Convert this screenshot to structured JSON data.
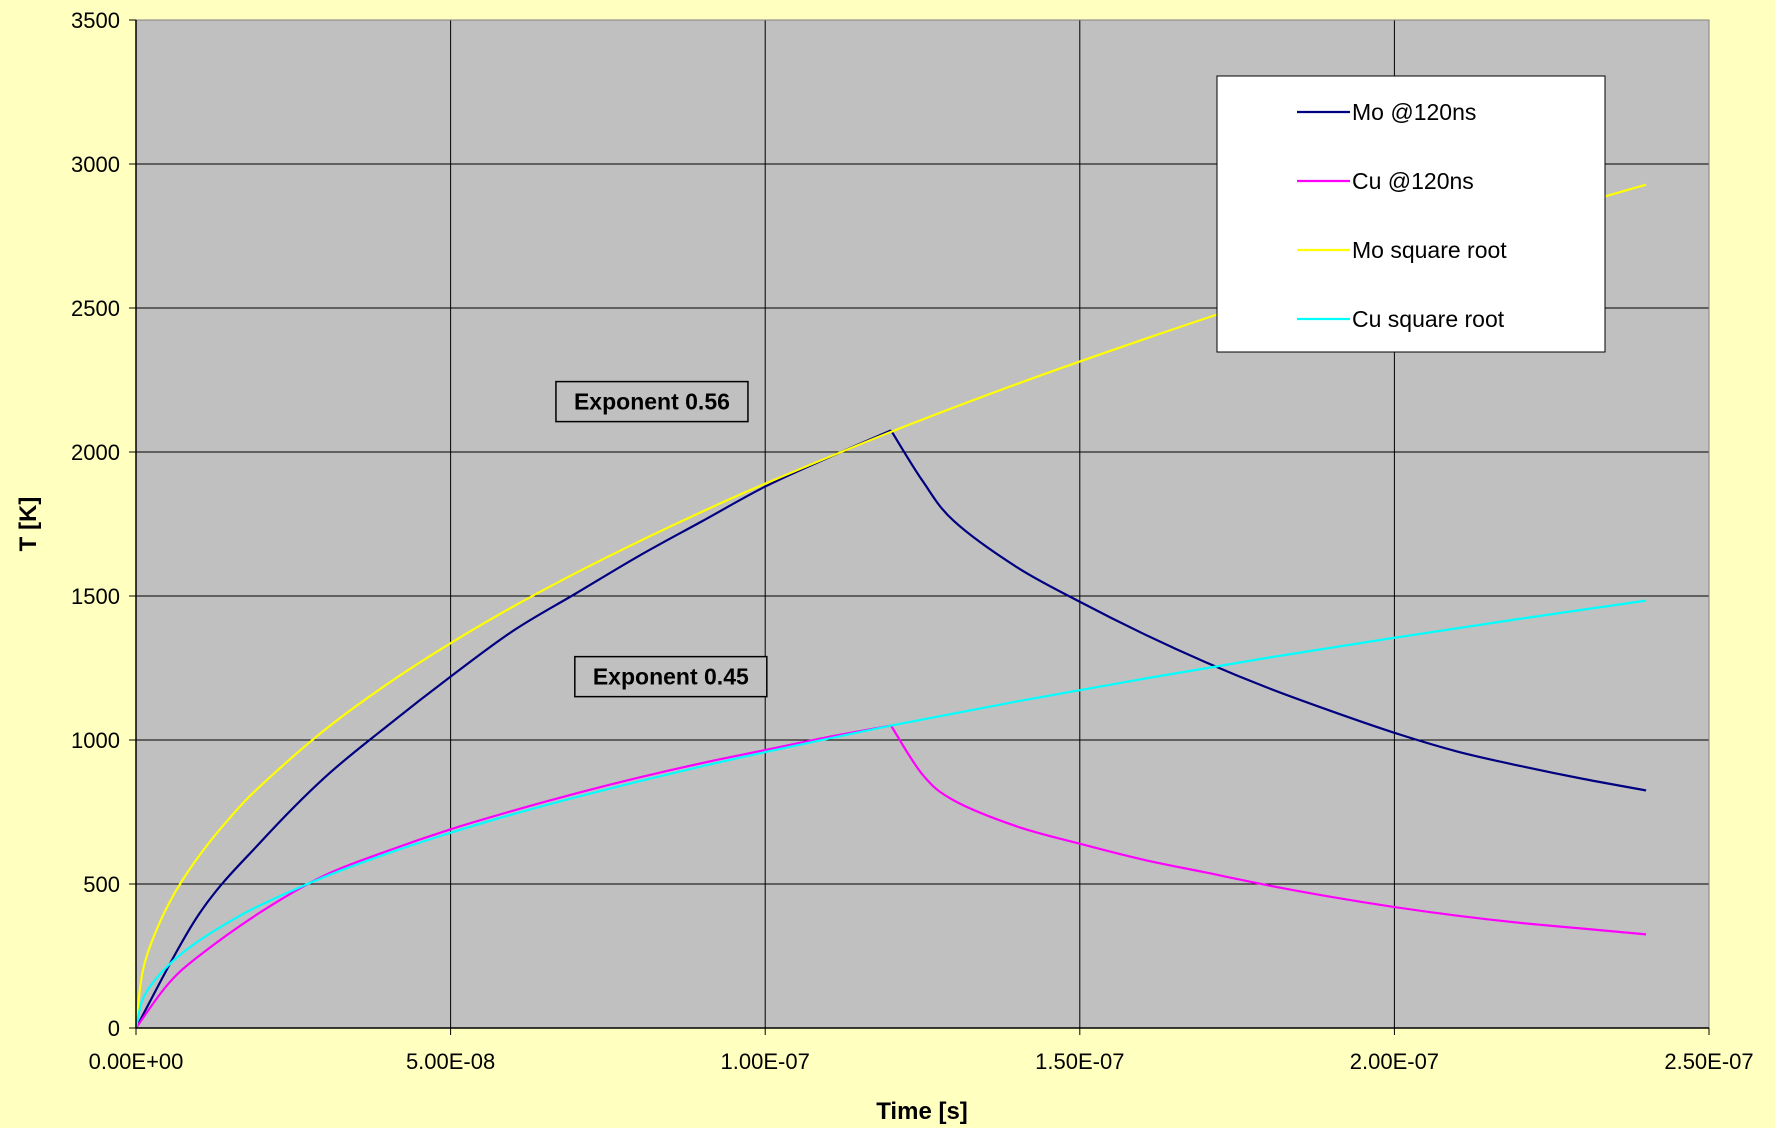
{
  "chart_data": {
    "type": "line",
    "title": "",
    "xlabel": "Time [s]",
    "ylabel": "T [K]",
    "xlim": [
      0,
      2.5e-07
    ],
    "ylim": [
      0,
      3500
    ],
    "x_ticks": [
      0,
      5e-08,
      1e-07,
      1.5e-07,
      2e-07,
      2.5e-07
    ],
    "x_tick_labels": [
      "0.00E+00",
      "5.00E-08",
      "1.00E-07",
      "1.50E-07",
      "2.00E-07",
      "2.50E-07"
    ],
    "y_ticks": [
      0,
      500,
      1000,
      1500,
      2000,
      2500,
      3000,
      3500
    ],
    "y_tick_labels": [
      "0",
      "500",
      "1000",
      "1500",
      "2000",
      "2500",
      "3000",
      "3500"
    ],
    "grid": true,
    "legend_position": "top-right",
    "plot_background": "#C0C0C0",
    "page_background": "#FFFFC0",
    "series": [
      {
        "name": "Mo @120ns",
        "color": "#000080",
        "x": [
          0,
          1e-08,
          2e-08,
          3e-08,
          4e-08,
          5e-08,
          6e-08,
          7e-08,
          8e-08,
          9e-08,
          1e-07,
          1.1e-07,
          1.2e-07,
          1.25e-07,
          1.3e-07,
          1.4e-07,
          1.5e-07,
          1.6e-07,
          1.7e-07,
          1.8e-07,
          1.9e-07,
          2e-07,
          2.1e-07,
          2.2e-07,
          2.3e-07,
          2.4e-07
        ],
        "values": [
          0,
          395,
          650,
          870,
          1050,
          1220,
          1380,
          1510,
          1640,
          1760,
          1880,
          1980,
          2075,
          1900,
          1760,
          1600,
          1480,
          1370,
          1270,
          1180,
          1100,
          1025,
          960,
          910,
          865,
          825
        ]
      },
      {
        "name": "Cu @120ns",
        "color": "#FF00FF",
        "x": [
          0,
          5e-09,
          1e-08,
          2e-08,
          3e-08,
          4e-08,
          5e-08,
          6e-08,
          7e-08,
          8e-08,
          9e-08,
          1e-07,
          1.1e-07,
          1.2e-07,
          1.25e-07,
          1.3e-07,
          1.4e-07,
          1.5e-07,
          1.6e-07,
          1.7e-07,
          1.8e-07,
          1.9e-07,
          2e-07,
          2.1e-07,
          2.2e-07,
          2.3e-07,
          2.4e-07
        ],
        "values": [
          0,
          150,
          250,
          405,
          530,
          615,
          690,
          755,
          815,
          870,
          920,
          965,
          1010,
          1050,
          880,
          790,
          700,
          640,
          585,
          540,
          495,
          455,
          420,
          390,
          365,
          345,
          325
        ]
      },
      {
        "name": "Mo square root",
        "color": "#FFFF00",
        "x": [
          0,
          1e-09,
          3e-09,
          6e-09,
          1e-08,
          1.5e-08,
          2e-08,
          3e-08,
          4e-08,
          5e-08,
          6e-08,
          7e-08,
          8e-08,
          9e-08,
          1e-07,
          1.2e-07,
          1.4e-07,
          1.6e-07,
          1.8e-07,
          2e-07,
          2.2e-07,
          2.4e-07
        ],
        "values": [
          0,
          190,
          327,
          463,
          597,
          732,
          845,
          1035,
          1195,
          1336,
          1464,
          1581,
          1690,
          1793,
          1890,
          2070,
          2236,
          2390,
          2536,
          2673,
          2803,
          2928
        ]
      },
      {
        "name": "Cu square root",
        "color": "#00FFFF",
        "x": [
          0,
          1e-09,
          3e-09,
          6e-09,
          1e-08,
          1.5e-08,
          2e-08,
          3e-08,
          4e-08,
          5e-08,
          6e-08,
          7e-08,
          8e-08,
          9e-08,
          1e-07,
          1.2e-07,
          1.4e-07,
          1.6e-07,
          1.8e-07,
          2e-07,
          2.2e-07,
          2.4e-07
        ],
        "values": [
          0,
          96,
          166,
          235,
          303,
          371,
          429,
          525,
          606,
          678,
          743,
          802,
          857,
          909,
          958,
          1050,
          1134,
          1212,
          1286,
          1355,
          1421,
          1484
        ]
      }
    ],
    "annotations": [
      {
        "text": "Exponent 0.56",
        "x": 8.2e-08,
        "y": 2175
      },
      {
        "text": "Exponent 0.45",
        "x": 8.5e-08,
        "y": 1220
      }
    ]
  }
}
